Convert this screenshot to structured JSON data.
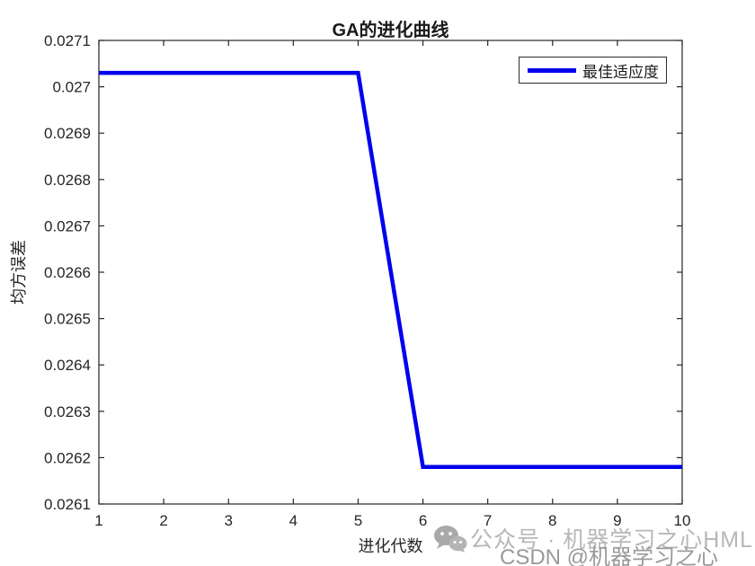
{
  "figure": {
    "background": "#ffffff",
    "axis_color": "#262626",
    "tick_label_color": "#262626"
  },
  "chart_data": {
    "type": "line",
    "title": "GA的进化曲线",
    "xlabel": "进化代数",
    "ylabel": "均方误差",
    "x": [
      1,
      2,
      3,
      4,
      5,
      6,
      7,
      8,
      9,
      10
    ],
    "series": [
      {
        "name": "最佳适应度",
        "color": "#0000EE",
        "line_width": 4.5,
        "values": [
          0.02703,
          0.02703,
          0.02703,
          0.02703,
          0.02703,
          0.02618,
          0.02618,
          0.02618,
          0.02618,
          0.02618
        ]
      }
    ],
    "xlim": [
      1,
      10
    ],
    "ylim": [
      0.0261,
      0.0271
    ],
    "x_ticks": [
      1,
      2,
      3,
      4,
      5,
      6,
      7,
      8,
      9,
      10
    ],
    "x_tick_labels": [
      "1",
      "2",
      "3",
      "4",
      "5",
      "6",
      "7",
      "8",
      "9",
      "10"
    ],
    "y_ticks": [
      0.0261,
      0.0262,
      0.0263,
      0.0264,
      0.0265,
      0.0266,
      0.0267,
      0.0268,
      0.0269,
      0.027,
      0.0271
    ],
    "y_tick_labels": [
      "0.0261",
      "0.0262",
      "0.0263",
      "0.0264",
      "0.0265",
      "0.0266",
      "0.0267",
      "0.0268",
      "0.0269",
      "0.027",
      "0.0271"
    ],
    "grid": false,
    "legend": {
      "position": "top-right",
      "entries": [
        "最佳适应度"
      ]
    }
  },
  "legend": {
    "label": "最佳适应度"
  },
  "watermark": {
    "wechat_text": "公众号 · 机器学习之心HML",
    "csdn_text": "CSDN @机器学习之心"
  }
}
